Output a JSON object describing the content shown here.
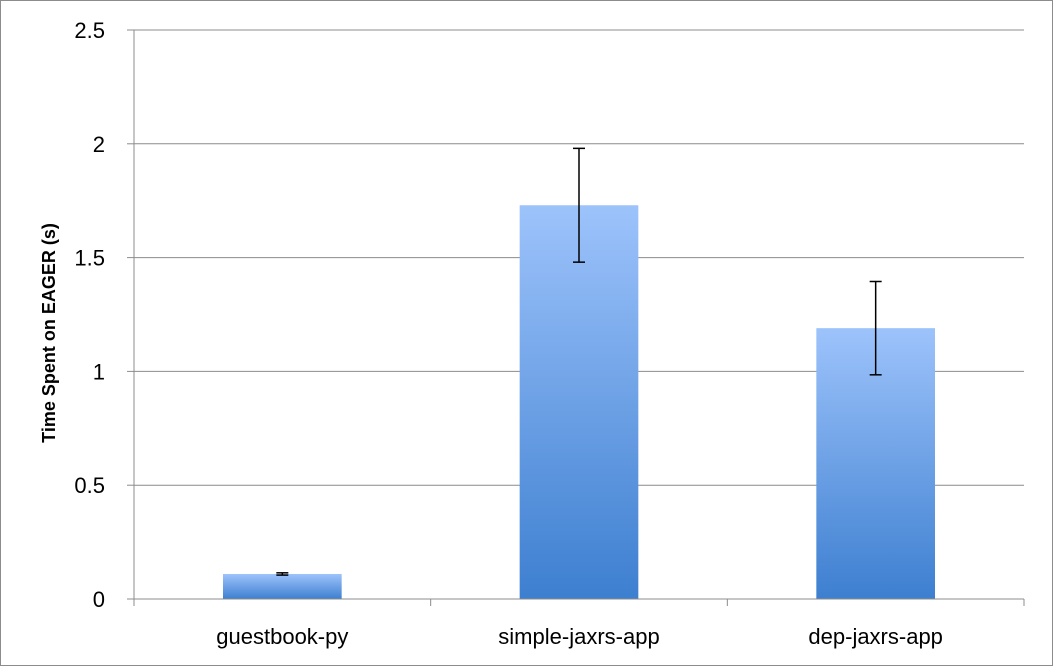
{
  "chart_data": {
    "type": "bar",
    "title": "",
    "xlabel": "",
    "ylabel": "Time Spent on EAGER (s)",
    "categories": [
      "guestbook-py",
      "simple-jaxrs-app",
      "dep-jaxrs-app"
    ],
    "series": [
      {
        "values": [
          0.11,
          1.73,
          1.19
        ],
        "error": [
          0.005,
          0.25,
          0.205
        ]
      }
    ],
    "ylim": [
      0,
      2.5
    ],
    "yticks": [
      0,
      0.5,
      1,
      1.5,
      2,
      2.5
    ],
    "ytick_labels": [
      "0",
      "0.5",
      "1",
      "1.5",
      "2",
      "2.5"
    ],
    "grid": true,
    "legend": "none",
    "colors": {
      "bar_top": "#9dc3fb",
      "bar_bottom": "#3d7fd0",
      "grid": "#8c8c8c",
      "axis": "#8c8c8c",
      "error_bar": "#000000"
    }
  }
}
